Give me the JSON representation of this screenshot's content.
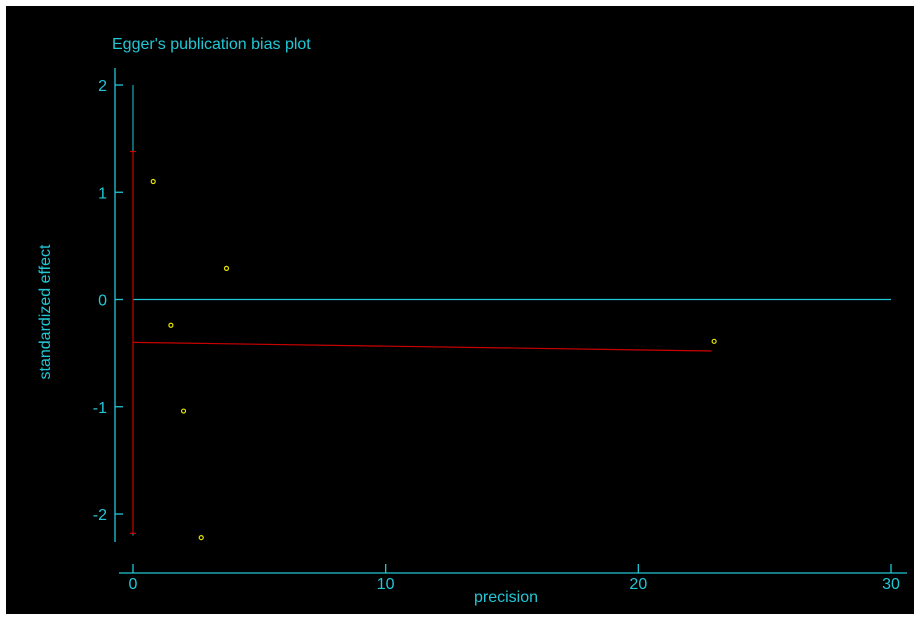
{
  "chart_data": {
    "type": "scatter",
    "title": "Egger's publication bias plot",
    "xlabel": "precision",
    "ylabel": "standardized effect",
    "xlim": [
      0,
      30
    ],
    "ylim": [
      -2.4,
      2.2
    ],
    "xticks": [
      0,
      10,
      20,
      30
    ],
    "yticks": [
      -2,
      -1,
      0,
      1,
      2
    ],
    "grid": false,
    "points": [
      {
        "x": 0.8,
        "y": 1.1
      },
      {
        "x": 3.7,
        "y": 0.29
      },
      {
        "x": 1.5,
        "y": -0.24
      },
      {
        "x": 2.0,
        "y": -1.04
      },
      {
        "x": 2.7,
        "y": -2.22
      },
      {
        "x": 23.0,
        "y": -0.39
      }
    ],
    "reference_line": {
      "y": 0,
      "x_from": 0,
      "x_to": 30
    },
    "regression_line": {
      "x_from": 0,
      "y_from": -0.4,
      "x_to": 22.9,
      "y_to": -0.48
    },
    "intercept_ci": {
      "x": 0,
      "y_low": -2.18,
      "y_high": 1.38
    },
    "y_axis_line": {
      "x": 0,
      "y_from": -2.2,
      "y_to": 2.0
    }
  },
  "colors": {
    "background": "#000000",
    "axis": "#22c7d6",
    "points": "#e6e600",
    "regression": "#cc0000"
  }
}
